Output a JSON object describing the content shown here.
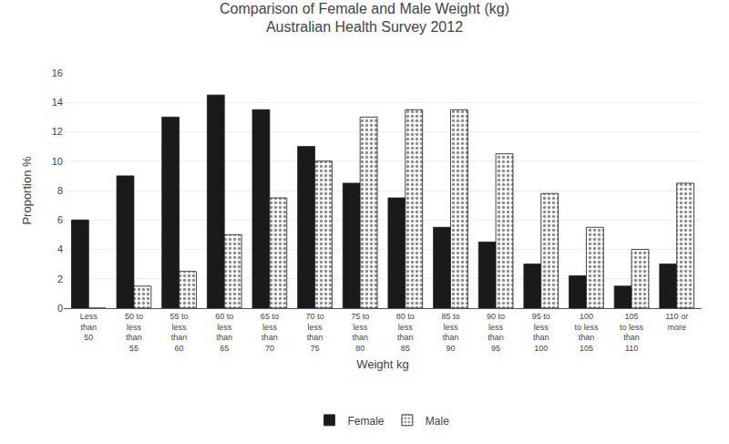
{
  "chart_data": {
    "type": "bar",
    "title": "Comparison of Female and Male Weight (kg)\nAustralian Health Survey 2012",
    "x_label": "Weight kg",
    "y_label": "Proportion %",
    "categories": [
      "Less\nthan\n50",
      "50 to\nless\nthan\n55",
      "55 to\nless\nthan\n60",
      "60 to\nless\nthan\n65",
      "65 to\nless\nthan\n70",
      "70 to\nless\nthan\n75",
      "75 to\nless\nthan\n80",
      "80 to\nless\nthan\n85",
      "85 to\nless\nthan\n90",
      "90 to\nless\nthan\n95",
      "95 to\nless\nthan\n100",
      "100\nto less\nthan\n105",
      "105\nto less\nthan\n110",
      "110 or\nmore"
    ],
    "series": [
      {
        "name": "Female",
        "color": "#1a1a1a",
        "values": [
          6.0,
          9.0,
          13.0,
          14.5,
          13.5,
          11.0,
          8.5,
          7.5,
          5.5,
          4.5,
          3.0,
          2.2,
          1.5,
          3.0
        ]
      },
      {
        "name": "Male",
        "color": "#1a1a1a",
        "marker": "dots",
        "values": [
          0.0,
          1.5,
          2.5,
          5.0,
          7.5,
          10.0,
          13.0,
          13.5,
          13.5,
          10.5,
          7.8,
          5.5,
          4.0,
          8.5
        ]
      }
    ],
    "ylim": [
      0,
      16
    ],
    "yticks": [
      0,
      2,
      4,
      6,
      8,
      10,
      12,
      14,
      16
    ],
    "grid": true,
    "legend": "bottom"
  }
}
